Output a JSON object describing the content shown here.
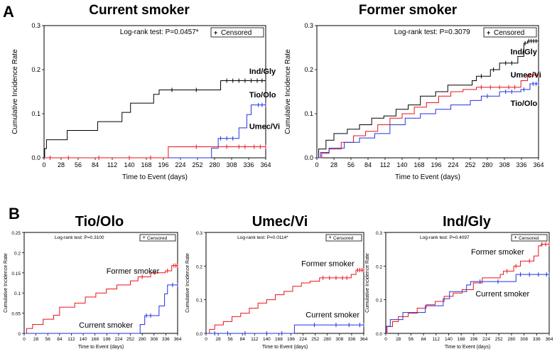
{
  "panel_labels": {
    "a": "A",
    "b": "B"
  },
  "colors": {
    "black": "#000000",
    "red": "#e8141a",
    "blue": "#2233dd",
    "grid": "#000000"
  },
  "chart_data": [
    {
      "id": "a_current",
      "type": "line",
      "title": "Current smoker",
      "xlabel": "Time to Event (days)",
      "ylabel": "Cumulative Incidence Rate",
      "xlim": [
        0,
        364
      ],
      "ylim": [
        0,
        0.3
      ],
      "xticks": [
        0,
        28,
        56,
        84,
        112,
        140,
        168,
        196,
        224,
        252,
        280,
        308,
        336,
        364
      ],
      "yticks": [
        0.0,
        0.1,
        0.2,
        0.3
      ],
      "test_label": "Log-rank test: P=0.0457*",
      "legend_label": "Censored",
      "series": [
        {
          "name": "Ind/Gly",
          "color": "black",
          "label_pos": [
            337,
            0.19
          ],
          "steps": [
            [
              0,
              0
            ],
            [
              1,
              0.021
            ],
            [
              4,
              0.041
            ],
            [
              38,
              0.062
            ],
            [
              88,
              0.082
            ],
            [
              128,
              0.103
            ],
            [
              142,
              0.124
            ],
            [
              180,
              0.144
            ],
            [
              189,
              0.154
            ],
            [
              290,
              0.175
            ],
            [
              364,
              0.175
            ]
          ],
          "censored": [
            210,
            250,
            300,
            310,
            320,
            330,
            340,
            350,
            358,
            364
          ]
        },
        {
          "name": "Tio/Olo",
          "color": "blue",
          "label_pos": [
            337,
            0.137
          ],
          "steps": [
            [
              0,
              0
            ],
            [
              275,
              0.022
            ],
            [
              286,
              0.044
            ],
            [
              320,
              0.068
            ],
            [
              333,
              0.098
            ],
            [
              340,
              0.12
            ],
            [
              364,
              0.12
            ]
          ],
          "censored": [
            290,
            300,
            310,
            352,
            358,
            364
          ]
        },
        {
          "name": "Umec/Vi",
          "color": "red",
          "label_pos": [
            337,
            0.065
          ],
          "steps": [
            [
              0,
              0
            ],
            [
              204,
              0.025
            ],
            [
              364,
              0.025
            ]
          ],
          "censored": [
            10,
            40,
            90,
            140,
            175,
            250,
            300,
            320,
            330,
            345,
            355,
            364
          ]
        }
      ]
    },
    {
      "id": "a_former",
      "type": "line",
      "title": "Former smoker",
      "xlabel": "Time to Event (days)",
      "ylabel": "Cumulative Incidence Rate",
      "xlim": [
        0,
        364
      ],
      "ylim": [
        0,
        0.3
      ],
      "xticks": [
        0,
        28,
        56,
        84,
        112,
        140,
        168,
        196,
        224,
        252,
        280,
        308,
        336,
        364
      ],
      "yticks": [
        0.0,
        0.1,
        0.2,
        0.3
      ],
      "test_label": "Log-rank test: P=0.3079",
      "legend_label": "Censored",
      "series": [
        {
          "name": "Ind/Gly",
          "color": "black",
          "label_pos": [
            318,
            0.235
          ],
          "steps": [
            [
              0,
              0
            ],
            [
              3,
              0.02
            ],
            [
              15,
              0.04
            ],
            [
              28,
              0.055
            ],
            [
              50,
              0.065
            ],
            [
              70,
              0.075
            ],
            [
              90,
              0.09
            ],
            [
              110,
              0.095
            ],
            [
              130,
              0.11
            ],
            [
              150,
              0.12
            ],
            [
              170,
              0.14
            ],
            [
              195,
              0.15
            ],
            [
              215,
              0.165
            ],
            [
              255,
              0.175
            ],
            [
              262,
              0.185
            ],
            [
              285,
              0.2
            ],
            [
              300,
              0.215
            ],
            [
              330,
              0.23
            ],
            [
              340,
              0.26
            ],
            [
              346,
              0.265
            ],
            [
              364,
              0.265
            ]
          ],
          "censored": [
            270,
            290,
            310,
            320,
            342,
            348,
            352,
            356,
            360,
            364
          ]
        },
        {
          "name": "Umec/Vi",
          "color": "red",
          "label_pos": [
            318,
            0.182
          ],
          "steps": [
            [
              0,
              0
            ],
            [
              8,
              0.01
            ],
            [
              20,
              0.02
            ],
            [
              40,
              0.035
            ],
            [
              60,
              0.05
            ],
            [
              80,
              0.06
            ],
            [
              100,
              0.075
            ],
            [
              120,
              0.09
            ],
            [
              140,
              0.1
            ],
            [
              160,
              0.115
            ],
            [
              180,
              0.125
            ],
            [
              200,
              0.14
            ],
            [
              220,
              0.15
            ],
            [
              240,
              0.155
            ],
            [
              262,
              0.16
            ],
            [
              335,
              0.175
            ],
            [
              346,
              0.188
            ],
            [
              364,
              0.188
            ]
          ],
          "censored": [
            270,
            285,
            300,
            315,
            325,
            350,
            355,
            360,
            364
          ]
        },
        {
          "name": "Tio/Olo",
          "color": "blue",
          "label_pos": [
            318,
            0.118
          ],
          "steps": [
            [
              0,
              0
            ],
            [
              6,
              0.012
            ],
            [
              20,
              0.022
            ],
            [
              45,
              0.035
            ],
            [
              70,
              0.045
            ],
            [
              95,
              0.055
            ],
            [
              120,
              0.075
            ],
            [
              145,
              0.09
            ],
            [
              170,
              0.1
            ],
            [
              195,
              0.11
            ],
            [
              220,
              0.12
            ],
            [
              252,
              0.13
            ],
            [
              270,
              0.14
            ],
            [
              300,
              0.15
            ],
            [
              335,
              0.155
            ],
            [
              350,
              0.168
            ],
            [
              364,
              0.168
            ]
          ],
          "censored": [
            280,
            310,
            320,
            340,
            355,
            360,
            364
          ]
        }
      ]
    },
    {
      "id": "b_tio",
      "type": "line",
      "title": "Tio/Olo",
      "xlabel": "Time to Event (days)",
      "ylabel": "Cumulative Incidence Rate",
      "xlim": [
        0,
        364
      ],
      "ylim": [
        0,
        0.25
      ],
      "xticks": [
        0,
        28,
        56,
        84,
        112,
        140,
        168,
        196,
        224,
        252,
        280,
        308,
        336,
        364
      ],
      "yticks": [
        0.0,
        0.05,
        0.1,
        0.15,
        0.2,
        0.25
      ],
      "test_label": "Log-rank test: P=0.3100",
      "legend_label": "Censored",
      "series": [
        {
          "name": "Former smoker",
          "color": "red",
          "label_pos": [
            195,
            0.148
          ],
          "steps": [
            [
              0,
              0
            ],
            [
              6,
              0.012
            ],
            [
              20,
              0.022
            ],
            [
              45,
              0.035
            ],
            [
              70,
              0.045
            ],
            [
              84,
              0.065
            ],
            [
              120,
              0.075
            ],
            [
              145,
              0.09
            ],
            [
              170,
              0.1
            ],
            [
              195,
              0.11
            ],
            [
              220,
              0.12
            ],
            [
              252,
              0.13
            ],
            [
              270,
              0.14
            ],
            [
              300,
              0.15
            ],
            [
              335,
              0.155
            ],
            [
              350,
              0.168
            ],
            [
              364,
              0.168
            ]
          ],
          "censored": [
            280,
            310,
            340,
            355,
            360,
            364
          ]
        },
        {
          "name": "Current smoker",
          "color": "blue",
          "label_pos": [
            130,
            0.014
          ],
          "steps": [
            [
              0,
              0
            ],
            [
              275,
              0.022
            ],
            [
              286,
              0.044
            ],
            [
              320,
              0.068
            ],
            [
              333,
              0.098
            ],
            [
              340,
              0.12
            ],
            [
              364,
              0.12
            ]
          ],
          "censored": [
            290,
            300,
            352,
            364
          ]
        }
      ]
    },
    {
      "id": "b_umec",
      "type": "line",
      "title": "Umec/Vi",
      "xlabel": "Time to Event (days)",
      "ylabel": "Cumulative Incidence Rate",
      "xlim": [
        0,
        364
      ],
      "ylim": [
        0,
        0.3
      ],
      "xticks": [
        0,
        28,
        56,
        84,
        112,
        140,
        168,
        196,
        224,
        252,
        280,
        308,
        336,
        364
      ],
      "yticks": [
        0.0,
        0.1,
        0.2,
        0.3
      ],
      "test_label": "Log-rank test: P=0.0114*",
      "legend_label": "Censored",
      "series": [
        {
          "name": "Former smoker",
          "color": "red",
          "label_pos": [
            220,
            0.2
          ],
          "steps": [
            [
              0,
              0
            ],
            [
              8,
              0.012
            ],
            [
              20,
              0.025
            ],
            [
              40,
              0.035
            ],
            [
              60,
              0.05
            ],
            [
              80,
              0.06
            ],
            [
              100,
              0.075
            ],
            [
              120,
              0.09
            ],
            [
              140,
              0.1
            ],
            [
              160,
              0.115
            ],
            [
              180,
              0.125
            ],
            [
              200,
              0.14
            ],
            [
              220,
              0.15
            ],
            [
              240,
              0.155
            ],
            [
              262,
              0.165
            ],
            [
              335,
              0.175
            ],
            [
              346,
              0.188
            ],
            [
              364,
              0.188
            ]
          ],
          "censored": [
            270,
            285,
            300,
            315,
            325,
            350,
            355,
            360,
            364
          ]
        },
        {
          "name": "Current smoker",
          "color": "blue",
          "label_pos": [
            230,
            0.048
          ],
          "steps": [
            [
              0,
              0
            ],
            [
              204,
              0.025
            ],
            [
              364,
              0.025
            ]
          ],
          "censored": [
            20,
            50,
            90,
            140,
            175,
            250,
            300,
            330,
            355,
            364
          ]
        }
      ]
    },
    {
      "id": "b_ind",
      "type": "line",
      "title": "Ind/Gly",
      "xlabel": "Time to Event (days)",
      "ylabel": "Cumulative Incidence Rate",
      "xlim": [
        0,
        364
      ],
      "ylim": [
        0,
        0.3
      ],
      "xticks": [
        0,
        28,
        56,
        84,
        112,
        140,
        168,
        196,
        224,
        252,
        280,
        308,
        336,
        364
      ],
      "yticks": [
        0.0,
        0.1,
        0.2,
        0.3
      ],
      "test_label": "Log-rank test: P=0.4097",
      "legend_label": "Censored",
      "series": [
        {
          "name": "Former smoker",
          "color": "red",
          "label_pos": [
            190,
            0.235
          ],
          "steps": [
            [
              0,
              0
            ],
            [
              3,
              0.02
            ],
            [
              15,
              0.035
            ],
            [
              28,
              0.05
            ],
            [
              50,
              0.06
            ],
            [
              70,
              0.075
            ],
            [
              90,
              0.085
            ],
            [
              110,
              0.095
            ],
            [
              130,
              0.11
            ],
            [
              150,
              0.12
            ],
            [
              170,
              0.13
            ],
            [
              195,
              0.15
            ],
            [
              215,
              0.165
            ],
            [
              255,
              0.175
            ],
            [
              262,
              0.185
            ],
            [
              285,
              0.2
            ],
            [
              300,
              0.215
            ],
            [
              330,
              0.23
            ],
            [
              340,
              0.26
            ],
            [
              346,
              0.265
            ],
            [
              364,
              0.265
            ]
          ],
          "censored": [
            270,
            290,
            320,
            348,
            356,
            364
          ]
        },
        {
          "name": "Current smoker",
          "color": "blue",
          "label_pos": [
            200,
            0.11
          ],
          "steps": [
            [
              0,
              0
            ],
            [
              1,
              0.021
            ],
            [
              10,
              0.041
            ],
            [
              38,
              0.062
            ],
            [
              88,
              0.082
            ],
            [
              128,
              0.103
            ],
            [
              142,
              0.124
            ],
            [
              180,
              0.144
            ],
            [
              189,
              0.154
            ],
            [
              290,
              0.175
            ],
            [
              364,
              0.175
            ]
          ],
          "censored": [
            210,
            250,
            300,
            320,
            340,
            358,
            364
          ]
        }
      ]
    }
  ]
}
